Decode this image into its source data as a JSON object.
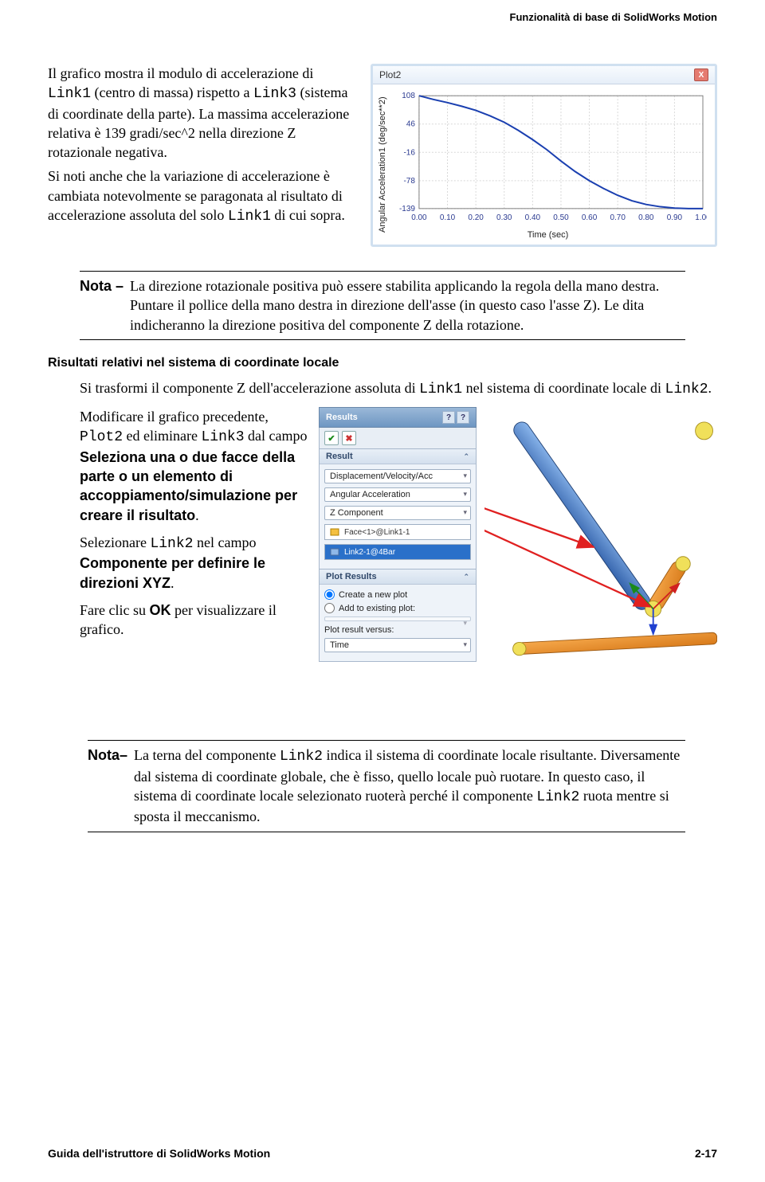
{
  "header_right": "Funzionalità di base di SolidWorks Motion",
  "intro": {
    "p1a": "Il grafico mostra il modulo di accelerazione di ",
    "p1b": " (centro di massa) rispetto a ",
    "p1c": " (sistema di coordinate della parte). La massima accelerazione relativa è 139 gradi/sec^2 nella direzione Z rotazionale negativa.",
    "code1": "Link1",
    "code2": "Link3",
    "p2a": "Si noti anche che la variazione di accelerazione è cambiata notevolmente se paragonata al risultato di accelerazione assoluta del solo ",
    "p2b": " di cui sopra.",
    "code3": "Link1"
  },
  "chart": {
    "title": "Plot2",
    "ylabel": "Angular Acceleration1 (deg/sec**2)",
    "xlabel": "Time (sec)",
    "y_ticks": [
      "108",
      "46",
      "-16",
      "-78",
      "-139"
    ],
    "x_ticks": [
      "0.00",
      "0.10",
      "0.20",
      "0.30",
      "0.40",
      "0.50",
      "0.60",
      "0.70",
      "0.80",
      "0.90",
      "1.00"
    ],
    "line_color": "#1a3fb0",
    "grid_color": "#d8d8d8",
    "axis_color": "#808080",
    "tick_text_color": "#2a3a90",
    "points": [
      [
        0.0,
        108
      ],
      [
        0.05,
        100
      ],
      [
        0.1,
        93
      ],
      [
        0.15,
        85
      ],
      [
        0.2,
        76
      ],
      [
        0.25,
        64
      ],
      [
        0.3,
        50
      ],
      [
        0.35,
        32
      ],
      [
        0.4,
        12
      ],
      [
        0.45,
        -10
      ],
      [
        0.5,
        -35
      ],
      [
        0.55,
        -58
      ],
      [
        0.6,
        -78
      ],
      [
        0.65,
        -95
      ],
      [
        0.7,
        -110
      ],
      [
        0.75,
        -122
      ],
      [
        0.8,
        -130
      ],
      [
        0.85,
        -135
      ],
      [
        0.9,
        -138
      ],
      [
        0.95,
        -139
      ],
      [
        1.0,
        -139
      ]
    ],
    "ylim": [
      -139,
      108
    ],
    "xlim": [
      0.0,
      1.0
    ]
  },
  "note1": {
    "label": "Nota –",
    "text": "La direzione rotazionale positiva può essere stabilita applicando la regola della mano destra. Puntare il pollice della mano destra in direzione dell'asse (in questo caso l'asse Z). Le dita indicheranno la direzione positiva del componente Z della rotazione."
  },
  "section_h": "Risultati relativi nel sistema di coordinate locale",
  "body1a": "Si trasformi il componente Z dell'accelerazione assoluta di ",
  "body1b": " nel sistema di coordinate locale di ",
  "body1c": ".",
  "code_link1": "Link1",
  "code_link2": "Link2",
  "instr": {
    "p1a": "Modificare il grafico precedente, ",
    "p1b": " ed eliminare ",
    "p1c": " dal campo ",
    "p1d": ".",
    "code_plot2": "Plot2",
    "code_link3": "Link3",
    "bold1": "Seleziona una o due facce della parte o un elemento di accoppiamento/simulazione per creare il risultato",
    "p2a": "Selezionare ",
    "p2b": " nel campo ",
    "p2c": ".",
    "code_link2b": "Link2",
    "bold2": "Componente per definire le direzioni XYZ",
    "p3a": "Fare clic su ",
    "p3b": " per visualizzare il grafico.",
    "bold3": "OK"
  },
  "pm": {
    "title": "Results",
    "sec1": "Result",
    "combo1": "Displacement/Velocity/Acc",
    "combo2": "Angular Acceleration",
    "combo3": "Z Component",
    "field1": "Face<1>@Link1-1",
    "field2": "Link2-1@4Bar",
    "sec2": "Plot Results",
    "radio1": "Create a new plot",
    "radio2": "Add to existing plot:",
    "label_versus": "Plot result versus:",
    "combo4": "Time"
  },
  "note2": {
    "label": "Nota–",
    "text_a": "La terna del componente ",
    "text_b": " indica il sistema di coordinate locale risultante. Diversamente dal sistema di coordinate globale, che è fisso, quello locale può ruotare. In questo caso, il sistema di coordinate locale selezionato ruoterà perché il componente ",
    "text_c": " ruota mentre si sposta il meccanismo.",
    "code1": "Link2",
    "code2": "Link2"
  },
  "footer_left": "Guida dell'istruttore di SolidWorks Motion",
  "footer_right": "2-17",
  "mech": {
    "bar_blue_grad": [
      "#6fa3e8",
      "#2f5ea8"
    ],
    "bar_orange_grad": [
      "#f6a94c",
      "#d87a1a"
    ],
    "pin_color": "#f0e05a",
    "arrow_red": "#e02020"
  }
}
